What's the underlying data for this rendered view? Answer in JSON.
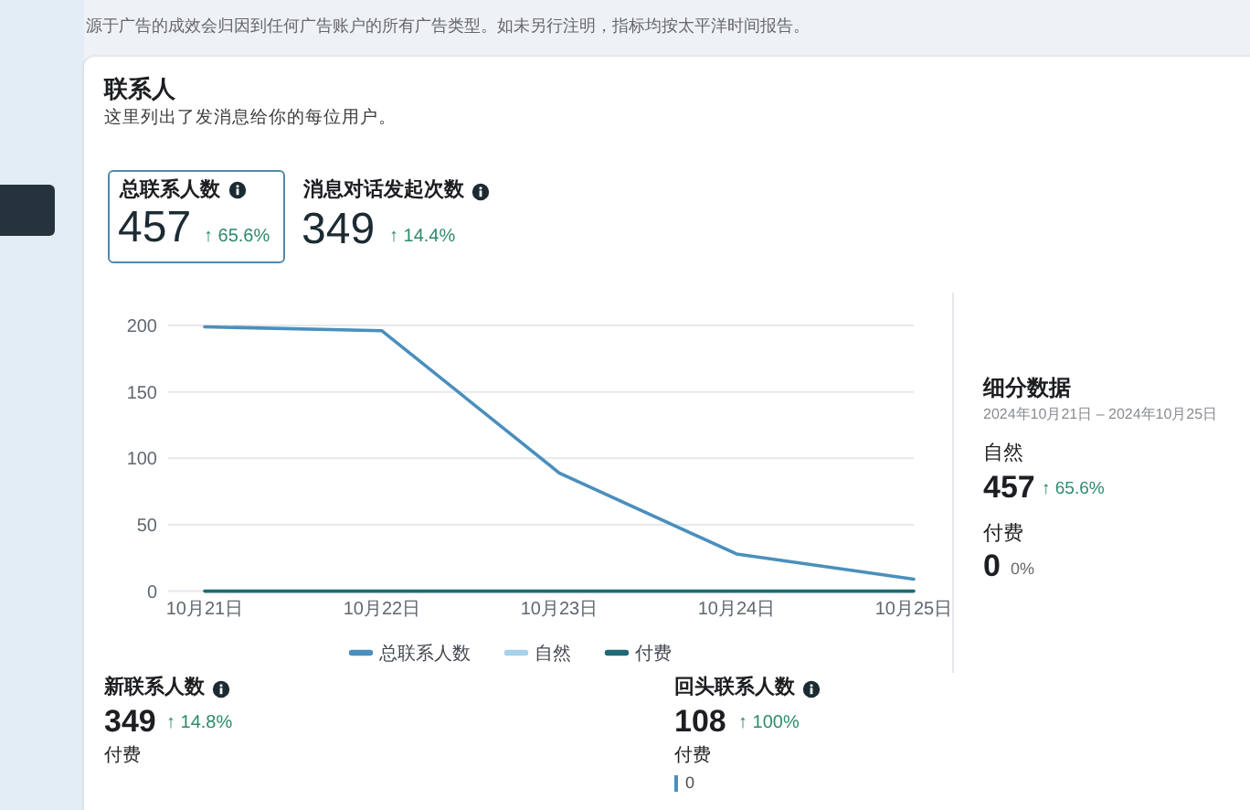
{
  "chart_data": [
    {
      "type": "other",
      "title": "联系人",
      "subtitle": "这里列出了发消息给你的每位用户。",
      "annotations": [
        "源于广告的成效会归因到任何广告账户的所有广告类型。如未另行注明，指标均按太平洋时间报告。"
      ]
    },
    {
      "type": "other",
      "title": "总联系人数",
      "annotations": [
        "457",
        "↑ 65.6%"
      ]
    },
    {
      "type": "other",
      "title": "消息对话发起次数",
      "annotations": [
        "349",
        "↑ 14.4%"
      ]
    },
    {
      "type": "line",
      "categories": [
        "10月21日",
        "10月22日",
        "10月23日",
        "10月24日",
        "10月25日"
      ],
      "series": [
        {
          "name": "总联系人数",
          "color": "#4a8fbd",
          "values": [
            199,
            196,
            89,
            28,
            9
          ]
        },
        {
          "name": "自然",
          "color": "#a6d1ea",
          "values": [
            null,
            null,
            null,
            null,
            null
          ]
        },
        {
          "name": "付费",
          "color": "#1f6b75",
          "values": [
            0,
            0,
            0,
            0,
            0
          ]
        }
      ],
      "ylim": [
        0,
        200
      ],
      "yticks": [
        0,
        50,
        100,
        150,
        200
      ],
      "grid": "y",
      "legend": "bottom"
    },
    {
      "type": "other",
      "title": "细分数据",
      "subtitle": "2024年10月21日 – 2024年10月25日",
      "annotations": [
        "自然",
        "457",
        "↑ 65.6%",
        "付费",
        "0",
        "0%"
      ]
    },
    {
      "type": "other",
      "title": "新联系人数",
      "annotations": [
        "349",
        "↑ 14.8%",
        "付费"
      ]
    },
    {
      "type": "other",
      "title": "回头联系人数",
      "annotations": [
        "108",
        "↑ 100%",
        "付费",
        "0"
      ]
    }
  ]
}
